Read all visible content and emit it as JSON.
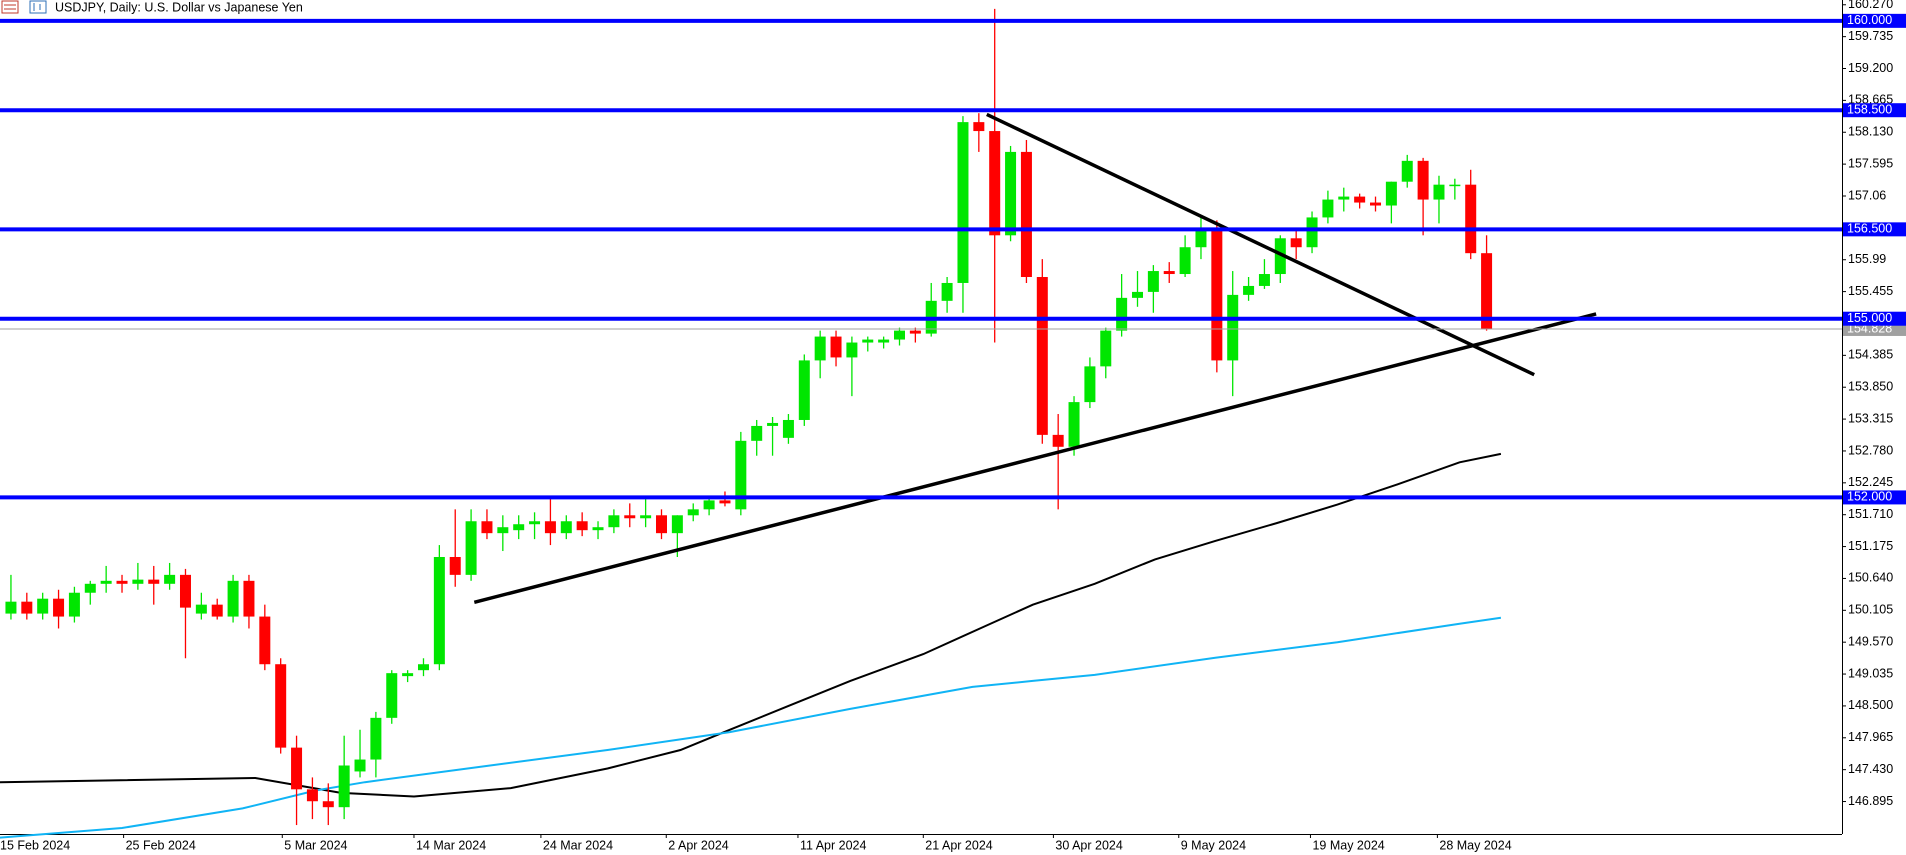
{
  "chart_data": {
    "type": "candlestick",
    "title": "USDJPY, Daily:  U.S. Dollar vs Japanese Yen",
    "bull_color": "#00e600",
    "bear_color": "#ff0000",
    "xlim": [
      -0.69,
      115.4
    ],
    "ylim": [
      146.35,
      160.35
    ],
    "yticks": [
      {
        "value": 160.27,
        "label": "160.270"
      },
      159.735,
      {
        "value": 159.2,
        "label": "159.200"
      },
      158.665,
      {
        "value": 158.13,
        "label": "158.130"
      },
      157.595,
      157.06,
      155.99,
      155.455,
      154.385,
      {
        "value": 153.85,
        "label": "153.850"
      },
      153.315,
      {
        "value": 152.78,
        "label": "152.780"
      },
      152.245,
      {
        "value": 151.71,
        "label": "151.710"
      },
      151.175,
      {
        "value": 150.64,
        "label": "150.640"
      },
      150.105,
      {
        "value": 149.57,
        "label": "149.570"
      },
      149.035,
      {
        "value": 148.5,
        "label": "148.500"
      },
      147.965,
      {
        "value": 147.43,
        "label": "147.430"
      },
      146.895
    ],
    "xticks": [
      {
        "value": -0.9,
        "label": "15 Feb 2024"
      },
      {
        "value": 7.1,
        "label": "25 Feb 2024"
      },
      {
        "value": 17.1,
        "label": "5 Mar 2024"
      },
      {
        "value": 25.4,
        "label": "14 Mar 2024"
      },
      {
        "value": 33.4,
        "label": "24 Mar 2024"
      },
      {
        "value": 41.3,
        "label": "2 Apr 2024"
      },
      {
        "value": 49.6,
        "label": "11 Apr 2024"
      },
      {
        "value": 57.5,
        "label": "21 Apr 2024"
      },
      {
        "value": 65.7,
        "label": "30 Apr 2024"
      },
      {
        "value": 73.6,
        "label": "9 May 2024"
      },
      {
        "value": 81.9,
        "label": "19 May 2024"
      },
      {
        "value": 89.9,
        "label": "28 May 2024"
      }
    ],
    "candles": [
      [
        150.05,
        150.7,
        149.95,
        150.25
      ],
      [
        150.25,
        150.4,
        149.95,
        150.05
      ],
      [
        150.05,
        150.4,
        149.95,
        150.3
      ],
      [
        150.3,
        150.45,
        149.8,
        150.0
      ],
      [
        150.0,
        150.5,
        149.9,
        150.4
      ],
      [
        150.4,
        150.6,
        150.2,
        150.55
      ],
      [
        150.55,
        150.85,
        150.4,
        150.6
      ],
      [
        150.6,
        150.7,
        150.4,
        150.55
      ],
      [
        150.55,
        150.9,
        150.45,
        150.62
      ],
      [
        150.62,
        150.85,
        150.2,
        150.55
      ],
      [
        150.55,
        150.9,
        150.45,
        150.7
      ],
      [
        150.7,
        150.8,
        149.3,
        150.15
      ],
      [
        150.05,
        150.4,
        149.95,
        150.2
      ],
      [
        150.2,
        150.3,
        149.95,
        150.0
      ],
      [
        150.0,
        150.7,
        149.9,
        150.6
      ],
      [
        150.6,
        150.7,
        149.8,
        150.0
      ],
      [
        150.0,
        150.2,
        149.1,
        149.2
      ],
      [
        149.2,
        149.3,
        147.7,
        147.8
      ],
      [
        147.8,
        148.0,
        146.5,
        147.1
      ],
      [
        147.1,
        147.3,
        146.6,
        146.9
      ],
      [
        146.9,
        147.2,
        146.5,
        146.8
      ],
      [
        146.8,
        148.0,
        146.6,
        147.5
      ],
      [
        147.4,
        148.1,
        147.3,
        147.6
      ],
      [
        147.6,
        148.4,
        147.3,
        148.3
      ],
      [
        148.3,
        149.1,
        148.2,
        149.05
      ],
      [
        149.0,
        149.1,
        148.9,
        149.05
      ],
      [
        149.1,
        149.3,
        149.0,
        149.2
      ],
      [
        149.2,
        151.2,
        149.1,
        151.0
      ],
      [
        151.0,
        151.8,
        150.5,
        150.7
      ],
      [
        150.7,
        151.8,
        150.6,
        151.6
      ],
      [
        151.6,
        151.8,
        151.3,
        151.4
      ],
      [
        151.4,
        151.7,
        151.1,
        151.5
      ],
      [
        151.45,
        151.7,
        151.3,
        151.55
      ],
      [
        151.55,
        151.75,
        151.3,
        151.6
      ],
      [
        151.6,
        152.0,
        151.2,
        151.4
      ],
      [
        151.4,
        151.7,
        151.3,
        151.6
      ],
      [
        151.6,
        151.75,
        151.35,
        151.45
      ],
      [
        151.45,
        151.6,
        151.3,
        151.5
      ],
      [
        151.5,
        151.8,
        151.4,
        151.7
      ],
      [
        151.7,
        151.9,
        151.5,
        151.65
      ],
      [
        151.65,
        152.0,
        151.5,
        151.7
      ],
      [
        151.7,
        151.8,
        151.3,
        151.4
      ],
      [
        151.4,
        151.7,
        151.0,
        151.7
      ],
      [
        151.7,
        151.9,
        151.6,
        151.8
      ],
      [
        151.8,
        152.0,
        151.7,
        151.95
      ],
      [
        151.95,
        152.1,
        151.85,
        151.9
      ],
      [
        151.8,
        153.1,
        151.7,
        152.95
      ],
      [
        152.95,
        153.3,
        152.7,
        153.2
      ],
      [
        153.2,
        153.35,
        152.7,
        153.25
      ],
      [
        153.0,
        153.4,
        152.9,
        153.3
      ],
      [
        153.3,
        154.4,
        153.2,
        154.3
      ],
      [
        154.3,
        154.8,
        154.0,
        154.7
      ],
      [
        154.7,
        154.8,
        154.2,
        154.35
      ],
      [
        154.35,
        154.7,
        153.7,
        154.6
      ],
      [
        154.6,
        154.7,
        154.45,
        154.65
      ],
      [
        154.6,
        154.7,
        154.5,
        154.65
      ],
      [
        154.65,
        154.85,
        154.55,
        154.8
      ],
      [
        154.8,
        154.85,
        154.6,
        154.75
      ],
      [
        154.75,
        155.6,
        154.7,
        155.3
      ],
      [
        155.3,
        155.7,
        155.1,
        155.6
      ],
      [
        155.6,
        158.4,
        155.1,
        158.3
      ],
      [
        158.3,
        158.45,
        157.8,
        158.15
      ],
      [
        158.15,
        160.2,
        154.6,
        156.4
      ],
      [
        156.4,
        157.9,
        156.3,
        157.8
      ],
      [
        157.8,
        158.0,
        155.6,
        155.7
      ],
      [
        155.7,
        156.0,
        152.9,
        153.05
      ],
      [
        153.05,
        153.4,
        151.8,
        152.85
      ],
      [
        152.85,
        153.7,
        152.7,
        153.6
      ],
      [
        153.6,
        154.35,
        153.5,
        154.2
      ],
      [
        154.2,
        154.85,
        154.0,
        154.8
      ],
      [
        154.8,
        155.75,
        154.7,
        155.35
      ],
      [
        155.35,
        155.8,
        155.2,
        155.45
      ],
      [
        155.45,
        155.9,
        155.1,
        155.8
      ],
      [
        155.8,
        155.95,
        155.6,
        155.75
      ],
      [
        155.75,
        156.4,
        155.7,
        156.2
      ],
      [
        156.2,
        156.7,
        156.0,
        156.5
      ],
      [
        156.5,
        156.65,
        154.1,
        154.3
      ],
      [
        154.3,
        155.8,
        153.7,
        155.4
      ],
      [
        155.4,
        155.7,
        155.3,
        155.55
      ],
      [
        155.55,
        156.0,
        155.5,
        155.75
      ],
      [
        155.75,
        156.4,
        155.6,
        156.35
      ],
      [
        156.35,
        156.5,
        156.0,
        156.2
      ],
      [
        156.2,
        156.8,
        156.1,
        156.7
      ],
      [
        156.7,
        157.15,
        156.6,
        157.0
      ],
      [
        157.0,
        157.2,
        156.8,
        157.05
      ],
      [
        157.05,
        157.1,
        156.85,
        156.95
      ],
      [
        156.95,
        157.05,
        156.8,
        156.9
      ],
      [
        156.9,
        157.3,
        156.6,
        157.3
      ],
      [
        157.3,
        157.75,
        157.2,
        157.65
      ],
      [
        157.65,
        157.7,
        156.4,
        157.0
      ],
      [
        157.0,
        157.4,
        156.6,
        157.25
      ],
      [
        157.25,
        157.35,
        157.0,
        157.25
      ],
      [
        157.25,
        157.5,
        156.0,
        156.1
      ],
      [
        156.1,
        156.4,
        154.8,
        154.83
      ]
    ],
    "moving_averages": [
      {
        "color": "#000000",
        "points": [
          [
            -0.7,
            147.22
          ],
          [
            15.4,
            147.29
          ],
          [
            20.8,
            147.04
          ],
          [
            25.4,
            146.98
          ],
          [
            31.5,
            147.12
          ],
          [
            37.6,
            147.45
          ],
          [
            42.2,
            147.76
          ],
          [
            45.3,
            148.1
          ],
          [
            49.1,
            148.51
          ],
          [
            52.9,
            148.92
          ],
          [
            57.5,
            149.37
          ],
          [
            61.4,
            149.84
          ],
          [
            64.4,
            150.2
          ],
          [
            68.3,
            150.55
          ],
          [
            72.1,
            150.96
          ],
          [
            75.9,
            151.27
          ],
          [
            79.8,
            151.57
          ],
          [
            83.6,
            151.88
          ],
          [
            87.4,
            152.22
          ],
          [
            91.3,
            152.59
          ],
          [
            93.9,
            152.73
          ]
        ]
      },
      {
        "color": "#10b4f5",
        "points": [
          [
            -0.7,
            146.29
          ],
          [
            7,
            146.45
          ],
          [
            14.6,
            146.78
          ],
          [
            19.2,
            147.08
          ],
          [
            22.3,
            147.22
          ],
          [
            29.9,
            147.49
          ],
          [
            37.6,
            147.76
          ],
          [
            45.3,
            148.06
          ],
          [
            52.9,
            148.45
          ],
          [
            60.6,
            148.82
          ],
          [
            64.4,
            148.92
          ],
          [
            68.3,
            149.02
          ],
          [
            75.9,
            149.31
          ],
          [
            83.6,
            149.57
          ],
          [
            91.3,
            149.88
          ],
          [
            93.9,
            149.98
          ]
        ]
      }
    ],
    "trendlines": [
      {
        "color": "#000000",
        "points": [
          [
            61.5,
            158.43
          ],
          [
            96.0,
            154.06
          ]
        ]
      },
      {
        "color": "#000000",
        "points": [
          [
            29.2,
            150.24
          ],
          [
            99.9,
            155.08
          ]
        ]
      }
    ],
    "levels": [
      {
        "value": 160,
        "label": "160.000"
      },
      {
        "value": 158.5,
        "label": "158.500"
      },
      {
        "value": 156.5,
        "label": "156.500"
      },
      {
        "value": 155,
        "label": "155.000"
      },
      {
        "value": 152,
        "label": "152.000"
      }
    ],
    "level_color": "#0000ff",
    "current_price": 154.828
  }
}
